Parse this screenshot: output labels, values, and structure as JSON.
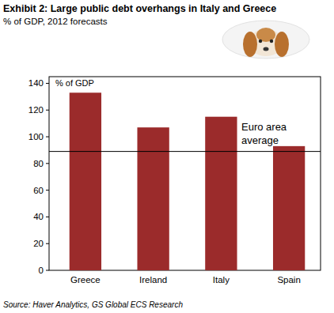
{
  "chart_data": {
    "type": "bar",
    "title": "Exhibit 2: Large public debt overhangs in Italy and Greece",
    "subtitle": "% of GDP, 2012 forecasts",
    "ylabel": "% of GDP",
    "source": "Source: Haver Analytics, GS Global ECS Research",
    "categories": [
      "Greece",
      "Ireland",
      "Italy",
      "Spain"
    ],
    "values": [
      133,
      107,
      115,
      93
    ],
    "color": "#9b2b2b",
    "ylim": [
      0,
      145
    ],
    "yticks": [
      0,
      20,
      40,
      60,
      80,
      100,
      120,
      140
    ],
    "grid": false,
    "average_line": {
      "value": 89,
      "label": "Euro area average"
    }
  }
}
